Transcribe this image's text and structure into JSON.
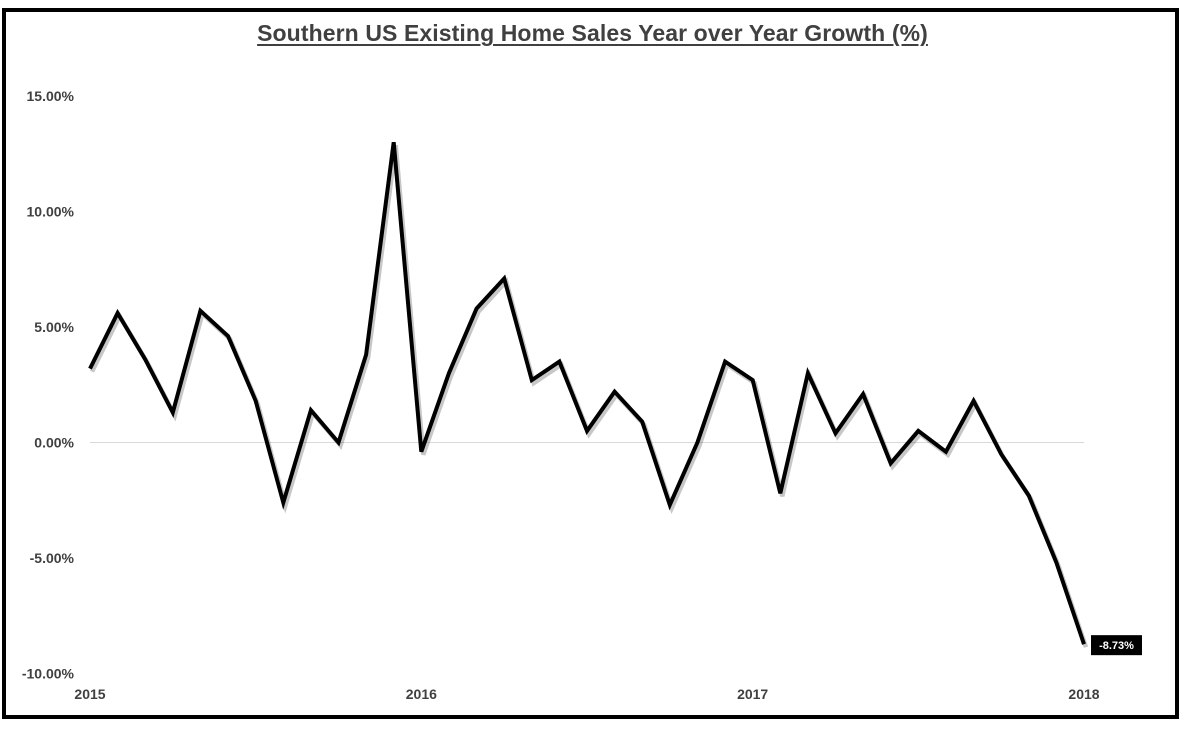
{
  "chart_data": {
    "type": "line",
    "title": "Southern US Existing Home Sales Year over Year Growth (%)",
    "xlabel": "",
    "ylabel": "",
    "ylim": [
      -10,
      15
    ],
    "grid": false,
    "y_ticks": [
      15,
      10,
      5,
      0,
      -5,
      -10
    ],
    "y_tick_labels": [
      "15.00%",
      "10.00%",
      "5.00%",
      "0.00%",
      "-5.00%",
      "-10.00%"
    ],
    "x_tick_labels": [
      "2015",
      "2016",
      "2017",
      "2018"
    ],
    "series": [
      {
        "name": "Southern US Existing Home Sales YoY Growth",
        "color": "#000000",
        "values": [
          3.2,
          5.6,
          3.6,
          1.3,
          5.7,
          4.6,
          1.8,
          -2.6,
          1.4,
          0.0,
          3.8,
          13.0,
          -0.4,
          3.0,
          5.8,
          7.1,
          2.7,
          3.5,
          0.5,
          2.2,
          0.9,
          -2.7,
          0.0,
          3.5,
          2.7,
          -2.2,
          3.0,
          0.4,
          2.1,
          -0.9,
          0.5,
          -0.4,
          1.8,
          -0.5,
          -2.3,
          -5.2,
          -8.73
        ]
      }
    ],
    "data_label": {
      "index": 36,
      "text": "-8.73%"
    }
  }
}
